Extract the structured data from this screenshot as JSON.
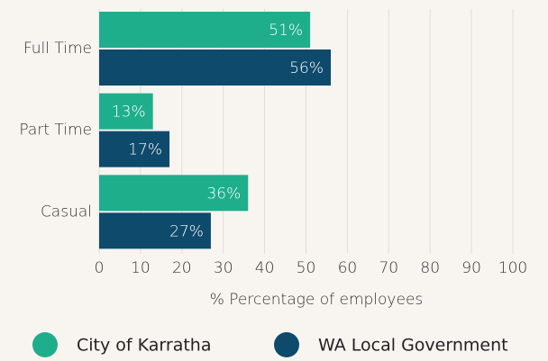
{
  "chart_data": {
    "type": "bar",
    "orientation": "horizontal",
    "categories": [
      "Full Time",
      "Part Time",
      "Casual"
    ],
    "series": [
      {
        "name": "City of Karratha",
        "color": "#1fae8c",
        "values": [
          51,
          13,
          36
        ],
        "value_labels": [
          "51%",
          "13%",
          "36%"
        ]
      },
      {
        "name": "WA Local Government",
        "color": "#0d4a6b",
        "values": [
          56,
          17,
          27
        ],
        "value_labels": [
          "56%",
          "17%",
          "27%"
        ]
      }
    ],
    "xlabel": "% Percentage of employees",
    "xlim": [
      0,
      100
    ],
    "xticks": [
      0,
      10,
      20,
      30,
      40,
      50,
      60,
      70,
      80,
      90,
      100
    ],
    "grid": true,
    "legend": "bottom"
  }
}
